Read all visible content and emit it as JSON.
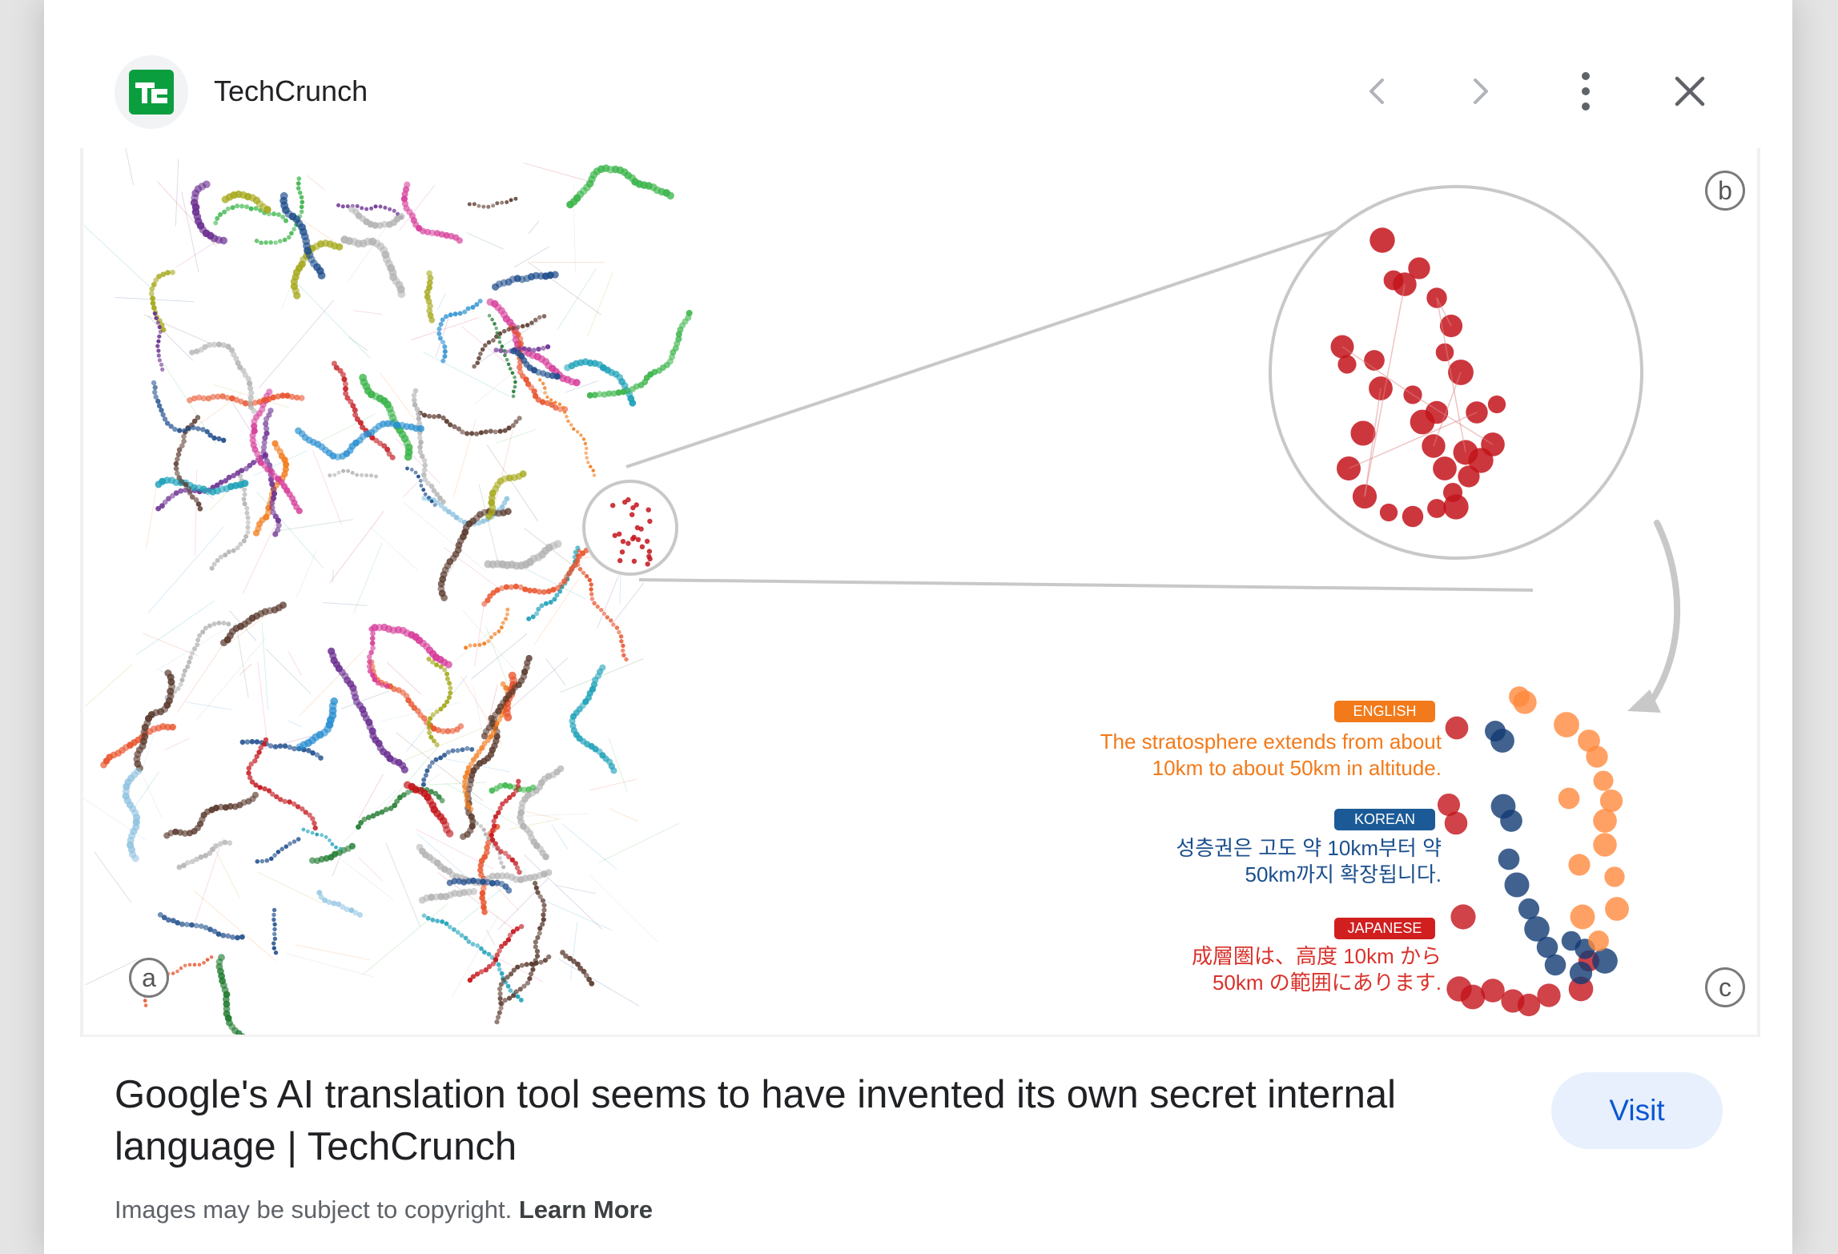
{
  "header": {
    "site_name": "TechCrunch",
    "favicon_text": "TC",
    "favicon_color": "#0a9e3f",
    "icons": {
      "prev": "chevron-left-icon",
      "next": "chevron-right-icon",
      "more": "more-vert-icon",
      "close": "close-icon"
    }
  },
  "figure": {
    "panel_labels": {
      "a": "a",
      "b": "b",
      "c": "c"
    },
    "languages": [
      {
        "tag": "ENGLISH",
        "text_line1": "The stratosphere extends from about",
        "text_line2": "10km to about 50km in altitude.",
        "color": "#f27a1a"
      },
      {
        "tag": "KOREAN",
        "text_line1": "성층권은 고도 약 10km부터 약",
        "text_line2": "50km까지 확장됩니다.",
        "color": "#1b4f8c"
      },
      {
        "tag": "JAPANESE",
        "text_line1": "成層圏は、高度 10km から",
        "text_line2": "50km の範囲にあります.",
        "color": "#d9312b"
      }
    ]
  },
  "result": {
    "title": "Google's AI translation tool seems to have invented its own secret internal language | TechCrunch",
    "visit_label": "Visit"
  },
  "footer": {
    "copyright_text": "Images may be subject to copyright.",
    "learn_more": "Learn More"
  }
}
